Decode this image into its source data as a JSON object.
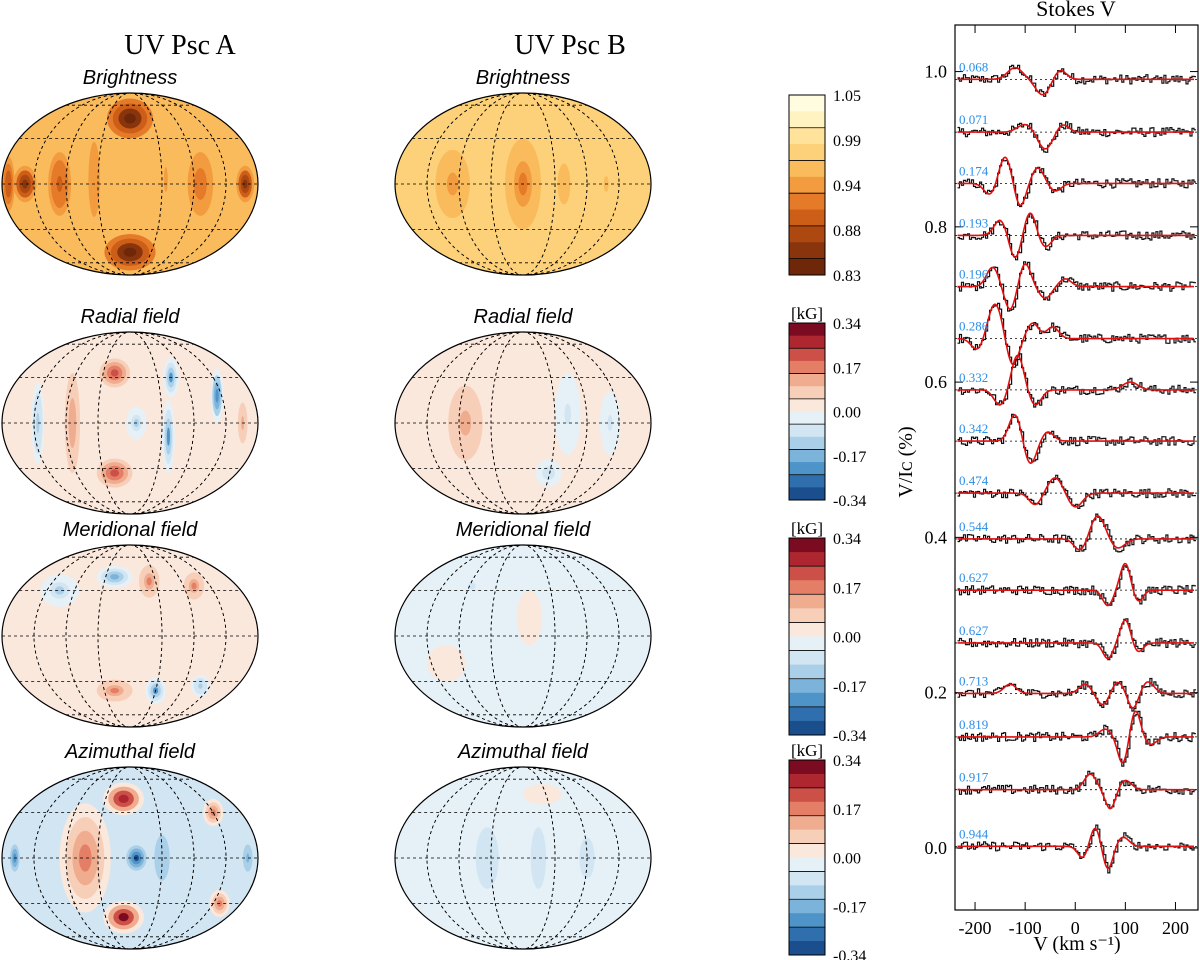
{
  "chart_data": {
    "type": "surface_maps_and_line_profiles",
    "columns": {
      "star_a": {
        "title": "UV Psc A"
      },
      "star_b": {
        "title": "UV Psc B"
      }
    },
    "rows": [
      {
        "key": "brightness",
        "title": "Brightness",
        "scheme": "brightness"
      },
      {
        "key": "radial",
        "title": "Radial field",
        "scheme": "field"
      },
      {
        "key": "meridional",
        "title": "Meridional field",
        "scheme": "field"
      },
      {
        "key": "azimuthal",
        "title": "Azimuthal field",
        "scheme": "field"
      }
    ],
    "brightness_colorbar": {
      "ticks": [
        "1.05",
        "0.99",
        "0.94",
        "0.88",
        "0.83"
      ],
      "range": [
        0.83,
        1.05
      ],
      "colors": [
        "#fffce0",
        "#fff3c2",
        "#ffe39b",
        "#fcd17a",
        "#f9bb5c",
        "#f29c3f",
        "#e57b28",
        "#cc5e17",
        "#ac4810",
        "#88350d",
        "#6e2708"
      ]
    },
    "field_colorbar": {
      "unit": "[kG]",
      "ticks": [
        "0.34",
        "0.17",
        "0.00",
        "-0.17",
        "-0.34"
      ],
      "range": [
        -0.34,
        0.34
      ],
      "colors": [
        "#1a4e8c",
        "#2f6fad",
        "#4f94c8",
        "#7bb3da",
        "#aacfe8",
        "#d2e5f2",
        "#e6f0f7",
        "#fbe8dd",
        "#f7cfb9",
        "#f0ac8f",
        "#e47e66",
        "#cc5047",
        "#ad2630",
        "#7a0b21"
      ]
    },
    "maps": {
      "star_a": {
        "brightness": {
          "background": 0.96,
          "spots": [
            {
              "lon": 0,
              "lat": 0.72,
              "rl": 0.18,
              "rb": 0.22,
              "v": 0.84
            },
            {
              "lon": 0,
              "lat": -0.75,
              "rl": 0.2,
              "rb": 0.2,
              "v": 0.84
            },
            {
              "lon": -0.55,
              "lat": 0,
              "rl": 0.09,
              "rb": 0.35,
              "v": 0.9
            },
            {
              "lon": -0.82,
              "lat": 0,
              "rl": 0.09,
              "rb": 0.2,
              "v": 0.86
            },
            {
              "lon": -0.95,
              "lat": 0,
              "rl": 0.05,
              "rb": 0.3,
              "v": 0.89
            },
            {
              "lon": 0.55,
              "lat": 0,
              "rl": 0.1,
              "rb": 0.35,
              "v": 0.91
            },
            {
              "lon": 0.9,
              "lat": 0,
              "rl": 0.07,
              "rb": 0.2,
              "v": 0.86
            },
            {
              "lon": -0.28,
              "lat": 0.05,
              "rl": 0.06,
              "rb": 0.55,
              "v": 0.93
            },
            {
              "lon": 0.28,
              "lat": 0.05,
              "rl": 0.06,
              "rb": 0.55,
              "v": 0.95
            }
          ]
        },
        "radial": {
          "background": 0.02,
          "spots": [
            {
              "lon": -0.12,
              "lat": 0.55,
              "rl": 0.12,
              "rb": 0.16,
              "v": 0.24
            },
            {
              "lon": -0.12,
              "lat": -0.55,
              "rl": 0.14,
              "rb": 0.16,
              "v": 0.24
            },
            {
              "lon": 0.32,
              "lat": 0.5,
              "rl": 0.06,
              "rb": 0.22,
              "v": -0.2
            },
            {
              "lon": 0.3,
              "lat": -0.15,
              "rl": 0.05,
              "rb": 0.4,
              "v": -0.2
            },
            {
              "lon": 0.68,
              "lat": 0.3,
              "rl": 0.05,
              "rb": 0.3,
              "v": -0.22
            },
            {
              "lon": -0.45,
              "lat": 0,
              "rl": 0.06,
              "rb": 0.55,
              "v": 0.14
            },
            {
              "lon": -0.72,
              "lat": 0,
              "rl": 0.05,
              "rb": 0.45,
              "v": -0.12
            },
            {
              "lon": 0.05,
              "lat": 0,
              "rl": 0.08,
              "rb": 0.18,
              "v": -0.1
            },
            {
              "lon": 0.88,
              "lat": 0,
              "rl": 0.05,
              "rb": 0.3,
              "v": 0.1
            }
          ]
        },
        "meridional": {
          "background": 0.02,
          "spots": [
            {
              "lon": -0.12,
              "lat": 0.65,
              "rl": 0.14,
              "rb": 0.12,
              "v": -0.18
            },
            {
              "lon": 0.15,
              "lat": 0.6,
              "rl": 0.08,
              "rb": 0.18,
              "v": 0.17
            },
            {
              "lon": 0.5,
              "lat": 0.55,
              "rl": 0.08,
              "rb": 0.15,
              "v": 0.15
            },
            {
              "lon": -0.12,
              "lat": -0.6,
              "rl": 0.14,
              "rb": 0.12,
              "v": 0.15
            },
            {
              "lon": 0.2,
              "lat": -0.6,
              "rl": 0.08,
              "rb": 0.15,
              "v": -0.2
            },
            {
              "lon": 0.55,
              "lat": -0.55,
              "rl": 0.07,
              "rb": 0.12,
              "v": -0.12
            },
            {
              "lon": -0.55,
              "lat": 0.5,
              "rl": 0.15,
              "rb": 0.18,
              "v": -0.1
            }
          ]
        },
        "azimuthal": {
          "background": -0.05,
          "spots": [
            {
              "lon": -0.35,
              "lat": 0,
              "rl": 0.2,
              "rb": 0.6,
              "v": 0.17
            },
            {
              "lon": -0.05,
              "lat": 0.65,
              "rl": 0.16,
              "rb": 0.18,
              "v": 0.28
            },
            {
              "lon": -0.05,
              "lat": -0.65,
              "rl": 0.16,
              "rb": 0.18,
              "v": 0.3
            },
            {
              "lon": 0.05,
              "lat": 0,
              "rl": 0.08,
              "rb": 0.14,
              "v": -0.3
            },
            {
              "lon": 0.25,
              "lat": 0,
              "rl": 0.12,
              "rb": 0.5,
              "v": -0.12
            },
            {
              "lon": 0.65,
              "lat": 0.5,
              "rl": 0.08,
              "rb": 0.15,
              "v": 0.18
            },
            {
              "lon": 0.7,
              "lat": -0.5,
              "rl": 0.08,
              "rb": 0.15,
              "v": 0.16
            },
            {
              "lon": -0.9,
              "lat": 0,
              "rl": 0.05,
              "rb": 0.2,
              "v": -0.2
            },
            {
              "lon": 0.92,
              "lat": 0,
              "rl": 0.05,
              "rb": 0.2,
              "v": -0.15
            }
          ]
        }
      },
      "star_b": {
        "brightness": {
          "background": 0.985,
          "spots": [
            {
              "lon": 0,
              "lat": 0,
              "rl": 0.14,
              "rb": 0.5,
              "v": 0.92
            },
            {
              "lon": -0.55,
              "lat": 0,
              "rl": 0.18,
              "rb": 0.5,
              "v": 0.95
            },
            {
              "lon": 0.32,
              "lat": 0,
              "rl": 0.1,
              "rb": 0.45,
              "v": 0.96
            },
            {
              "lon": 0.65,
              "lat": 0,
              "rl": 0.08,
              "rb": 0.35,
              "v": 0.97
            }
          ]
        },
        "radial": {
          "background": 0.01,
          "spots": [
            {
              "lon": -0.45,
              "lat": 0,
              "rl": 0.18,
              "rb": 0.55,
              "v": 0.12
            },
            {
              "lon": 0.35,
              "lat": 0.1,
              "rl": 0.1,
              "rb": 0.45,
              "v": -0.06
            },
            {
              "lon": 0.68,
              "lat": 0,
              "rl": 0.08,
              "rb": 0.35,
              "v": -0.05
            },
            {
              "lon": 0.2,
              "lat": -0.55,
              "rl": 0.1,
              "rb": 0.15,
              "v": -0.07
            }
          ]
        },
        "meridional": {
          "background": -0.01,
          "spots": [
            {
              "lon": -0.4,
              "lat": 0.55,
              "rl": 0.12,
              "rb": 0.15,
              "v": -0.06
            },
            {
              "lon": 0.05,
              "lat": 0.2,
              "rl": 0.1,
              "rb": 0.3,
              "v": 0.04
            },
            {
              "lon": -0.6,
              "lat": -0.3,
              "rl": 0.15,
              "rb": 0.2,
              "v": 0.03
            }
          ]
        },
        "azimuthal": {
          "background": -0.03,
          "spots": [
            {
              "lon": -0.28,
              "lat": 0,
              "rl": 0.12,
              "rb": 0.45,
              "v": -0.08
            },
            {
              "lon": 0.12,
              "lat": 0,
              "rl": 0.08,
              "rb": 0.45,
              "v": -0.09
            },
            {
              "lon": 0.5,
              "lat": 0,
              "rl": 0.12,
              "rb": 0.45,
              "v": -0.06
            },
            {
              "lon": 0.15,
              "lat": 0.7,
              "rl": 0.2,
              "rb": 0.15,
              "v": 0.03
            }
          ]
        }
      }
    },
    "stokes_v": {
      "title": "Stokes V",
      "xlabel": "V (km s⁻¹)",
      "ylabel": "V/Iᴄ (%)",
      "xlim": [
        -240,
        245
      ],
      "ylim": [
        -0.08,
        1.06
      ],
      "xticks": [
        -200,
        -100,
        0,
        100,
        200
      ],
      "xtick_labels": [
        "-200",
        "-100",
        "0",
        "100",
        "200"
      ],
      "yticks": [
        0.0,
        0.2,
        0.4,
        0.6,
        0.8,
        1.0
      ],
      "ytick_labels": [
        "0.0",
        "0.2",
        "0.4",
        "0.6",
        "0.8",
        "1.0"
      ],
      "profiles": [
        {
          "phase": "0.068",
          "offset": 0.99,
          "features": [
            {
              "v": -120,
              "a": 0.015,
              "w": 15
            },
            {
              "v": -65,
              "a": -0.02,
              "w": 14
            },
            {
              "v": -30,
              "a": 0.012,
              "w": 12
            }
          ]
        },
        {
          "phase": "0.071",
          "offset": 0.922,
          "features": [
            {
              "v": -100,
              "a": 0.01,
              "w": 15
            },
            {
              "v": -60,
              "a": -0.022,
              "w": 14
            },
            {
              "v": -25,
              "a": 0.01,
              "w": 12
            }
          ]
        },
        {
          "phase": "0.174",
          "offset": 0.856,
          "features": [
            {
              "v": -170,
              "a": -0.015,
              "w": 12
            },
            {
              "v": -140,
              "a": 0.035,
              "w": 12
            },
            {
              "v": -110,
              "a": -0.03,
              "w": 11
            },
            {
              "v": -75,
              "a": 0.02,
              "w": 12
            },
            {
              "v": -40,
              "a": -0.01,
              "w": 12
            }
          ]
        },
        {
          "phase": "0.193",
          "offset": 0.789,
          "features": [
            {
              "v": -150,
              "a": 0.02,
              "w": 12
            },
            {
              "v": -120,
              "a": -0.03,
              "w": 11
            },
            {
              "v": -90,
              "a": 0.03,
              "w": 11
            },
            {
              "v": -60,
              "a": -0.015,
              "w": 12
            }
          ]
        },
        {
          "phase": "0.196",
          "offset": 0.723,
          "features": [
            {
              "v": -165,
              "a": 0.025,
              "w": 12
            },
            {
              "v": -130,
              "a": -0.03,
              "w": 11
            },
            {
              "v": -100,
              "a": 0.03,
              "w": 11
            },
            {
              "v": -60,
              "a": -0.015,
              "w": 12
            },
            {
              "v": -20,
              "a": 0.01,
              "w": 12
            }
          ]
        },
        {
          "phase": "0.286",
          "offset": 0.656,
          "features": [
            {
              "v": -195,
              "a": -0.015,
              "w": 12
            },
            {
              "v": -160,
              "a": 0.045,
              "w": 14
            },
            {
              "v": -125,
              "a": -0.035,
              "w": 12
            },
            {
              "v": -85,
              "a": 0.02,
              "w": 12
            },
            {
              "v": -45,
              "a": 0.015,
              "w": 12
            }
          ]
        },
        {
          "phase": "0.332",
          "offset": 0.59,
          "features": [
            {
              "v": -150,
              "a": -0.02,
              "w": 12
            },
            {
              "v": -115,
              "a": 0.045,
              "w": 12
            },
            {
              "v": -80,
              "a": -0.02,
              "w": 12
            },
            {
              "v": 110,
              "a": 0.01,
              "w": 15
            }
          ]
        },
        {
          "phase": "0.342",
          "offset": 0.524,
          "features": [
            {
              "v": -120,
              "a": 0.035,
              "w": 12
            },
            {
              "v": -90,
              "a": -0.03,
              "w": 12
            },
            {
              "v": -55,
              "a": 0.012,
              "w": 12
            }
          ]
        },
        {
          "phase": "0.474",
          "offset": 0.457,
          "features": [
            {
              "v": -80,
              "a": -0.015,
              "w": 12
            },
            {
              "v": -40,
              "a": 0.02,
              "w": 14
            },
            {
              "v": 0,
              "a": -0.018,
              "w": 14
            }
          ]
        },
        {
          "phase": "0.544",
          "offset": 0.398,
          "features": [
            {
              "v": 10,
              "a": -0.015,
              "w": 12
            },
            {
              "v": 45,
              "a": 0.03,
              "w": 14
            },
            {
              "v": 85,
              "a": -0.012,
              "w": 14
            }
          ]
        },
        {
          "phase": "0.627",
          "offset": 0.332,
          "features": [
            {
              "v": 65,
              "a": -0.02,
              "w": 10
            },
            {
              "v": 100,
              "a": 0.035,
              "w": 10
            },
            {
              "v": 125,
              "a": -0.015,
              "w": 10
            }
          ]
        },
        {
          "phase": "0.627",
          "offset": 0.264,
          "features": [
            {
              "v": 65,
              "a": -0.02,
              "w": 10
            },
            {
              "v": 100,
              "a": 0.03,
              "w": 10
            },
            {
              "v": 125,
              "a": -0.012,
              "w": 10
            }
          ]
        },
        {
          "phase": "0.713",
          "offset": 0.199,
          "features": [
            {
              "v": -130,
              "a": 0.012,
              "w": 12
            },
            {
              "v": 20,
              "a": 0.012,
              "w": 12
            },
            {
              "v": 55,
              "a": -0.015,
              "w": 12
            },
            {
              "v": 85,
              "a": 0.015,
              "w": 12
            },
            {
              "v": 115,
              "a": -0.02,
              "w": 10
            },
            {
              "v": 145,
              "a": 0.015,
              "w": 12
            }
          ]
        },
        {
          "phase": "0.819",
          "offset": 0.143,
          "features": [
            {
              "v": 60,
              "a": 0.01,
              "w": 12
            },
            {
              "v": 95,
              "a": -0.035,
              "w": 10
            },
            {
              "v": 120,
              "a": 0.035,
              "w": 10
            },
            {
              "v": 150,
              "a": -0.01,
              "w": 12
            }
          ]
        },
        {
          "phase": "0.917",
          "offset": 0.075,
          "features": [
            {
              "v": 30,
              "a": 0.02,
              "w": 12
            },
            {
              "v": 70,
              "a": -0.025,
              "w": 10
            },
            {
              "v": 100,
              "a": 0.012,
              "w": 12
            }
          ]
        },
        {
          "phase": "0.944",
          "offset": 0.002,
          "features": [
            {
              "v": 15,
              "a": -0.015,
              "w": 10
            },
            {
              "v": 40,
              "a": 0.025,
              "w": 10
            },
            {
              "v": 65,
              "a": -0.03,
              "w": 10
            },
            {
              "v": 95,
              "a": 0.012,
              "w": 12
            }
          ]
        }
      ]
    }
  }
}
